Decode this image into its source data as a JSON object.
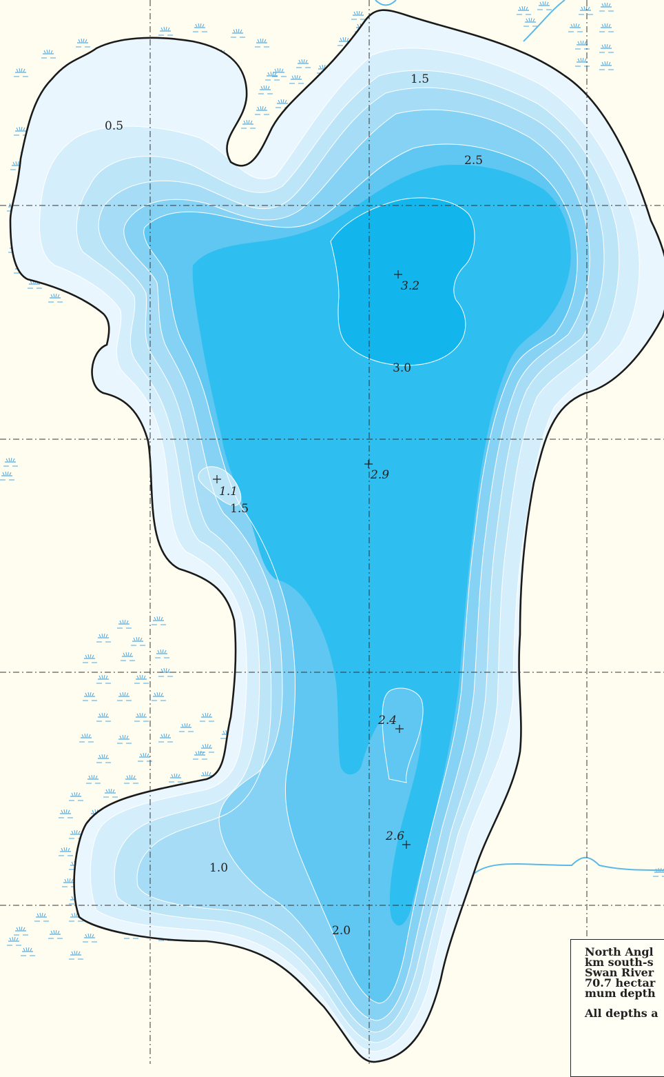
{
  "colors": {
    "land": "#fffdf0",
    "shore": "#1a1a1a",
    "band_0": "#eaf6fd",
    "band_05": "#d5eefb",
    "band_10": "#bde5f8",
    "band_15": "#a6dcf6",
    "band_20": "#86d2f4",
    "band_25": "#5fc7f1",
    "band_29": "#2ebef0",
    "band_30": "#12b5ec",
    "marsh": "#4aa6df",
    "stream": "#5ab8e6",
    "grid": "#333333"
  },
  "icons": {
    "marsh": "marsh-symbol-icon",
    "spot": "plus-marker-icon"
  },
  "contour_labels": [
    {
      "id": "c05",
      "text": "0.5"
    },
    {
      "id": "c15a",
      "text": "1.5"
    },
    {
      "id": "c25",
      "text": "2.5"
    },
    {
      "id": "c30",
      "text": "3.0"
    },
    {
      "id": "c15b",
      "text": "1.5"
    },
    {
      "id": "c10",
      "text": "1.0"
    },
    {
      "id": "c20",
      "text": "2.0"
    }
  ],
  "spot_depths": [
    {
      "id": "s32",
      "text": "3.2"
    },
    {
      "id": "s29",
      "text": "2.9"
    },
    {
      "id": "s11",
      "text": "1.1"
    },
    {
      "id": "s24",
      "text": "2.4"
    },
    {
      "id": "s26",
      "text": "2.6"
    }
  ],
  "info": {
    "line1": "North Angl",
    "line2": "km south-s",
    "line3": "Swan River",
    "line4": "70.7 hectar",
    "line5": "mum depth",
    "line6": "All depths a"
  }
}
